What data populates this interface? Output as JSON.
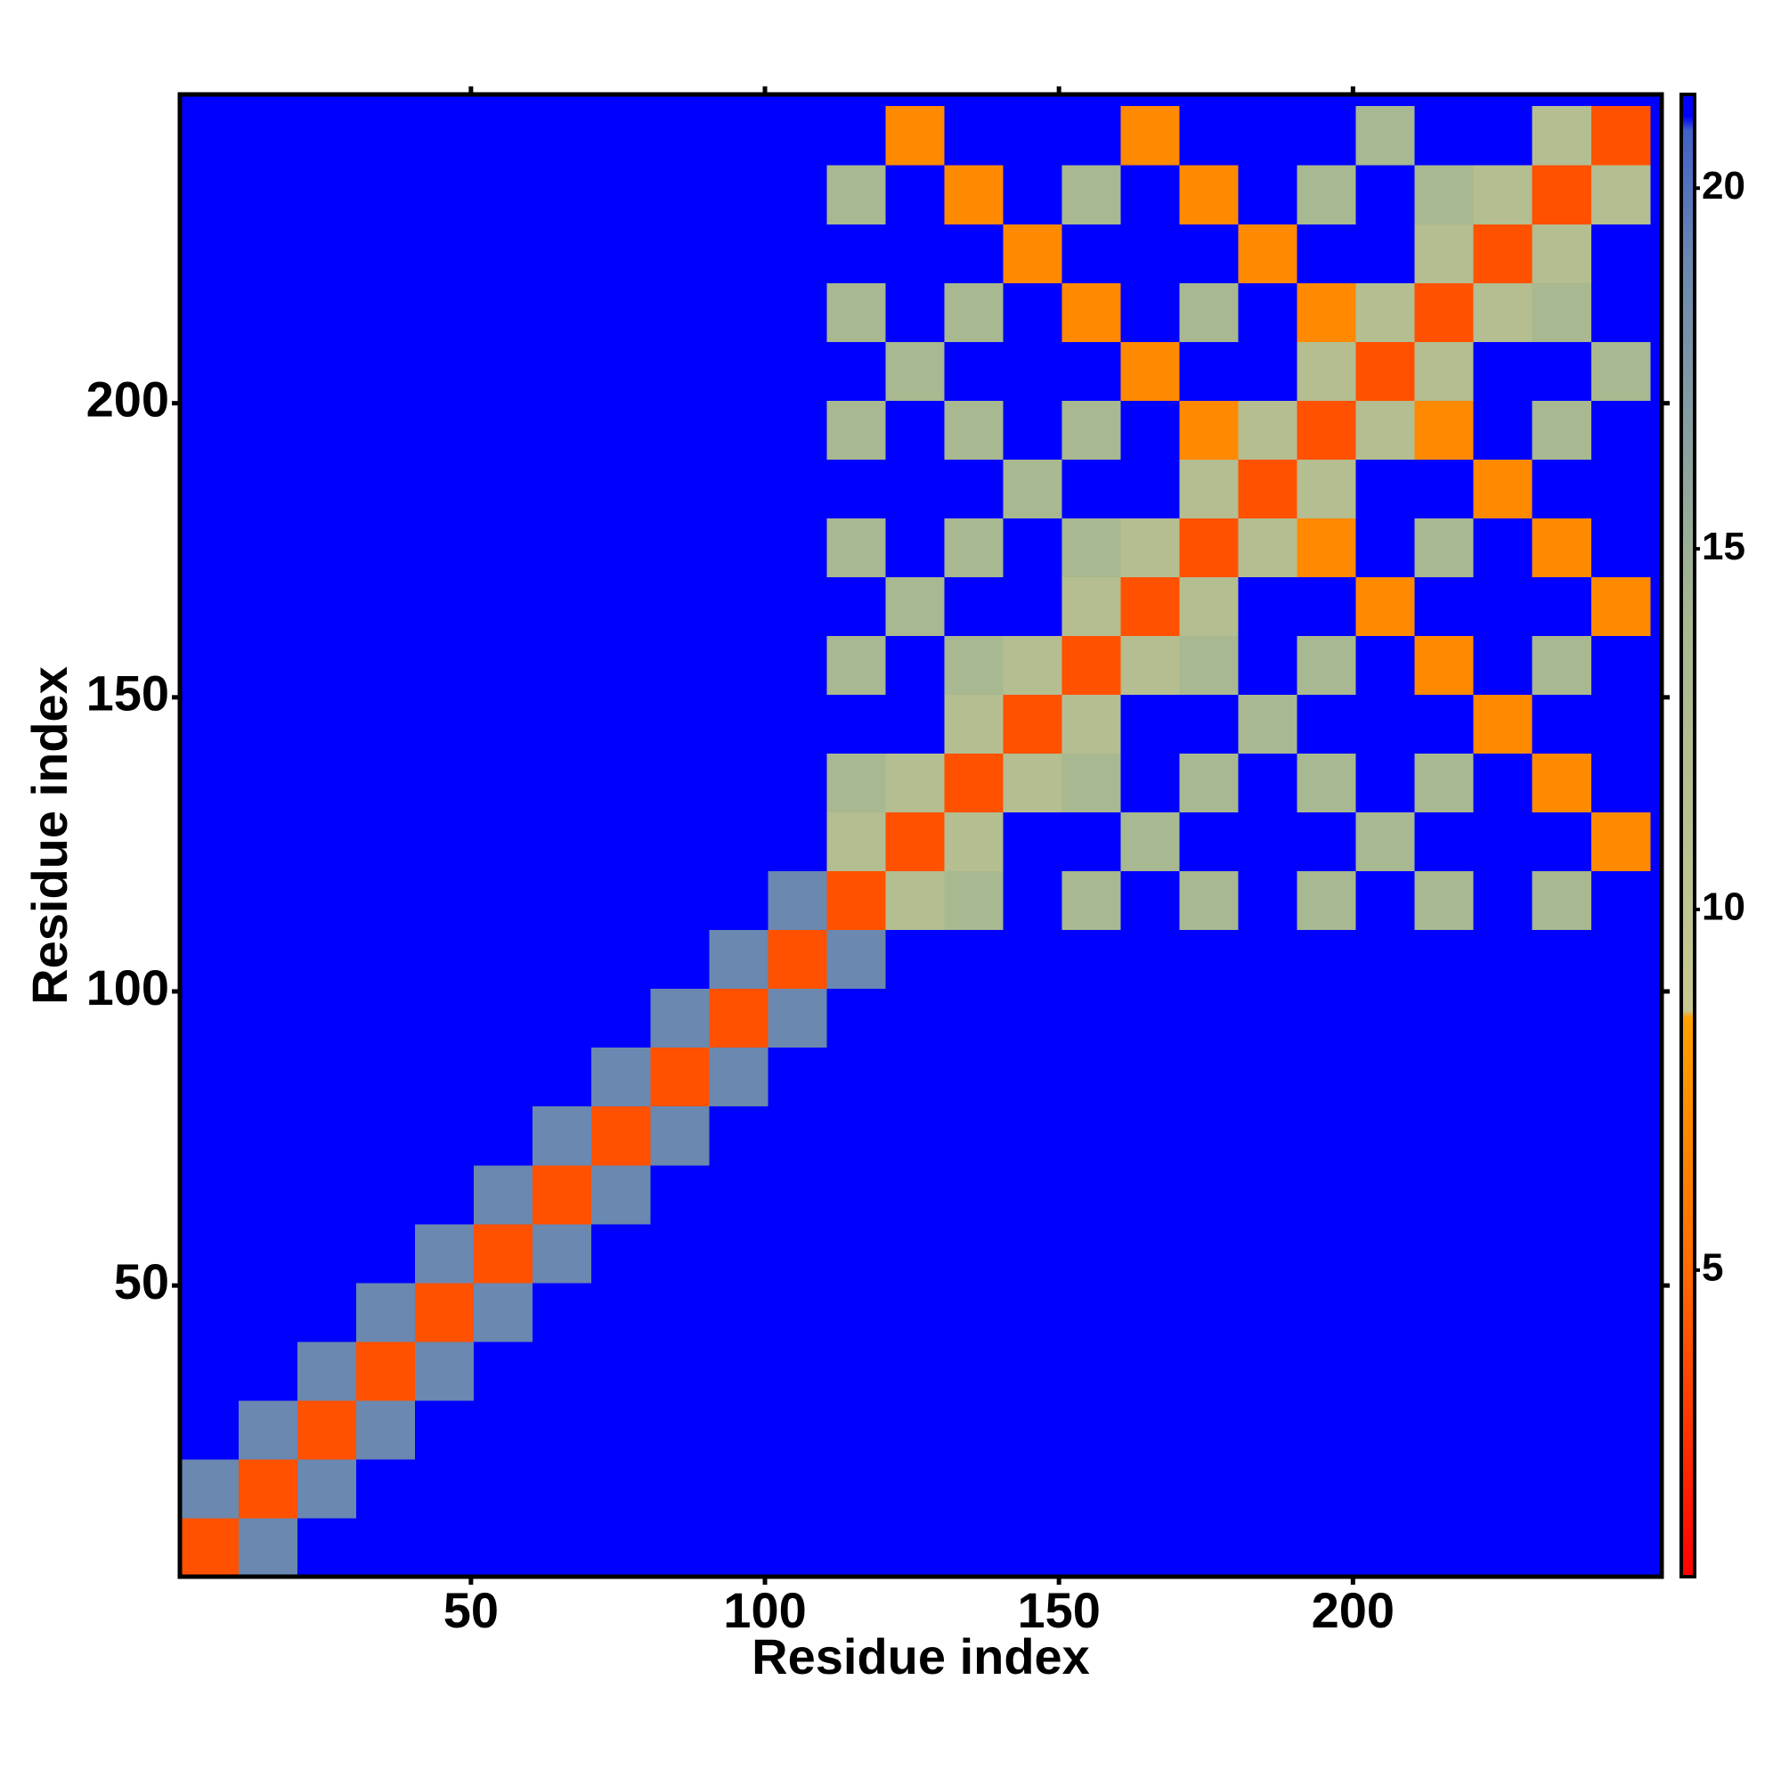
{
  "chart_data": {
    "type": "heatmap",
    "xlabel": "Residue index",
    "ylabel": "Residue index",
    "x": [
      5.5,
      15.5,
      25.5,
      35.5,
      45.5,
      55.5,
      65.5,
      75.5,
      85.5,
      95.5,
      105.5,
      115.5,
      125.5,
      135.5,
      145.5,
      155.5,
      165.5,
      175.5,
      185.5,
      195.5,
      205.5,
      215.5,
      225.5,
      235.5,
      245.5
    ],
    "y": [
      5.5,
      15.5,
      25.5,
      35.5,
      45.5,
      55.5,
      65.5,
      75.5,
      85.5,
      95.5,
      105.5,
      115.5,
      125.5,
      135.5,
      145.5,
      155.5,
      165.5,
      175.5,
      185.5,
      195.5,
      205.5,
      215.5,
      225.5,
      235.5,
      245.5
    ],
    "values": [
      [
        4,
        19,
        21,
        21,
        21,
        21,
        21,
        21,
        21,
        21,
        21,
        21,
        21,
        21,
        21,
        21,
        21,
        21,
        21,
        21,
        21,
        21,
        21,
        21,
        21
      ],
      [
        19,
        4,
        19,
        21,
        21,
        21,
        21,
        21,
        21,
        21,
        21,
        21,
        21,
        21,
        21,
        21,
        21,
        21,
        21,
        21,
        21,
        21,
        21,
        21,
        21
      ],
      [
        21,
        19,
        4,
        19,
        21,
        21,
        21,
        21,
        21,
        21,
        21,
        21,
        21,
        21,
        21,
        21,
        21,
        21,
        21,
        21,
        21,
        21,
        21,
        21,
        21
      ],
      [
        21,
        21,
        19,
        4,
        19,
        21,
        21,
        21,
        21,
        21,
        21,
        21,
        21,
        21,
        21,
        21,
        21,
        21,
        21,
        21,
        21,
        21,
        21,
        21,
        21
      ],
      [
        21,
        21,
        21,
        19,
        4,
        19,
        21,
        21,
        21,
        21,
        21,
        21,
        21,
        21,
        21,
        21,
        21,
        21,
        21,
        21,
        21,
        21,
        21,
        21,
        21
      ],
      [
        21,
        21,
        21,
        21,
        19,
        4,
        19,
        21,
        21,
        21,
        21,
        21,
        21,
        21,
        21,
        21,
        21,
        21,
        21,
        21,
        21,
        21,
        21,
        21,
        21
      ],
      [
        21,
        21,
        21,
        21,
        21,
        19,
        4,
        19,
        21,
        21,
        21,
        21,
        21,
        21,
        21,
        21,
        21,
        21,
        21,
        21,
        21,
        21,
        21,
        21,
        21
      ],
      [
        21,
        21,
        21,
        21,
        21,
        21,
        19,
        4,
        19,
        21,
        21,
        21,
        21,
        21,
        21,
        21,
        21,
        21,
        21,
        21,
        21,
        21,
        21,
        21,
        21
      ],
      [
        21,
        21,
        21,
        21,
        21,
        21,
        21,
        19,
        4,
        19,
        21,
        21,
        21,
        21,
        21,
        21,
        21,
        21,
        21,
        21,
        21,
        21,
        21,
        21,
        21
      ],
      [
        21,
        21,
        21,
        21,
        21,
        21,
        21,
        21,
        19,
        4,
        19,
        21,
        21,
        21,
        21,
        21,
        21,
        21,
        21,
        21,
        21,
        21,
        21,
        21,
        21
      ],
      [
        21,
        21,
        21,
        21,
        21,
        21,
        21,
        21,
        21,
        19,
        4,
        19,
        21,
        21,
        21,
        21,
        21,
        21,
        21,
        21,
        21,
        21,
        21,
        21,
        21
      ],
      [
        21,
        21,
        21,
        21,
        21,
        21,
        21,
        21,
        21,
        21,
        19,
        4,
        12,
        14,
        21,
        14,
        21,
        14,
        21,
        14,
        21,
        14,
        21,
        14,
        21
      ],
      [
        21,
        21,
        21,
        21,
        21,
        21,
        21,
        21,
        21,
        21,
        21,
        12,
        4,
        12,
        21,
        21,
        14,
        21,
        21,
        21,
        14,
        21,
        21,
        21,
        7
      ],
      [
        21,
        21,
        21,
        21,
        21,
        21,
        21,
        21,
        21,
        21,
        21,
        14,
        12,
        4,
        12,
        14,
        21,
        14,
        21,
        14,
        21,
        14,
        21,
        7,
        21
      ],
      [
        21,
        21,
        21,
        21,
        21,
        21,
        21,
        21,
        21,
        21,
        21,
        21,
        21,
        12,
        4,
        12,
        21,
        21,
        14,
        21,
        21,
        21,
        7,
        21,
        21
      ],
      [
        21,
        21,
        21,
        21,
        21,
        21,
        21,
        21,
        21,
        21,
        21,
        14,
        21,
        14,
        12,
        4,
        12,
        14,
        21,
        14,
        21,
        7,
        21,
        14,
        21
      ],
      [
        21,
        21,
        21,
        21,
        21,
        21,
        21,
        21,
        21,
        21,
        21,
        21,
        14,
        21,
        21,
        12,
        4,
        12,
        21,
        21,
        7,
        21,
        21,
        21,
        7
      ],
      [
        21,
        21,
        21,
        21,
        21,
        21,
        21,
        21,
        21,
        21,
        21,
        14,
        21,
        14,
        21,
        14,
        12,
        4,
        12,
        7,
        21,
        14,
        21,
        7,
        21
      ],
      [
        21,
        21,
        21,
        21,
        21,
        21,
        21,
        21,
        21,
        21,
        21,
        21,
        21,
        21,
        14,
        21,
        21,
        12,
        4,
        12,
        21,
        21,
        7,
        21,
        21
      ],
      [
        21,
        21,
        21,
        21,
        21,
        21,
        21,
        21,
        21,
        21,
        21,
        14,
        21,
        14,
        21,
        14,
        21,
        7,
        12,
        4,
        12,
        7,
        21,
        14,
        21
      ],
      [
        21,
        21,
        21,
        21,
        21,
        21,
        21,
        21,
        21,
        21,
        21,
        21,
        14,
        21,
        21,
        21,
        7,
        21,
        21,
        12,
        4,
        12,
        21,
        21,
        14
      ],
      [
        21,
        21,
        21,
        21,
        21,
        21,
        21,
        21,
        21,
        21,
        21,
        14,
        21,
        14,
        21,
        7,
        21,
        14,
        21,
        7,
        12,
        4,
        12,
        14,
        21
      ],
      [
        21,
        21,
        21,
        21,
        21,
        21,
        21,
        21,
        21,
        21,
        21,
        21,
        21,
        21,
        7,
        21,
        21,
        21,
        7,
        21,
        21,
        12,
        4,
        12,
        21
      ],
      [
        21,
        21,
        21,
        21,
        21,
        21,
        21,
        21,
        21,
        21,
        21,
        14,
        21,
        7,
        21,
        14,
        21,
        7,
        21,
        14,
        21,
        14,
        12,
        4,
        12
      ],
      [
        21,
        21,
        21,
        21,
        21,
        21,
        21,
        21,
        21,
        21,
        21,
        21,
        7,
        21,
        21,
        21,
        7,
        21,
        21,
        21,
        14,
        21,
        21,
        12,
        4
      ]
    ],
    "xlim": [
      0.5,
      252.5
    ],
    "ylim": [
      0.5,
      252.5
    ],
    "xticks": [
      50,
      100,
      150,
      200
    ],
    "yticks": [
      50,
      100,
      150,
      200
    ],
    "colorscale": [
      [
        0.75,
        "#ff0000"
      ],
      [
        5,
        "#ff6a00"
      ],
      [
        8.5,
        "#ffa000"
      ],
      [
        8.6,
        "#c8c890"
      ],
      [
        14,
        "#a8b890"
      ],
      [
        19,
        "#6a88b0"
      ],
      [
        20.8,
        "#4060c8"
      ],
      [
        21,
        "#0000ff"
      ],
      [
        21.3,
        "#0000ff"
      ]
    ],
    "colorbar_lim": [
      0.75,
      21.3
    ],
    "colorbar_ticks": [
      5,
      10,
      15,
      20
    ]
  }
}
